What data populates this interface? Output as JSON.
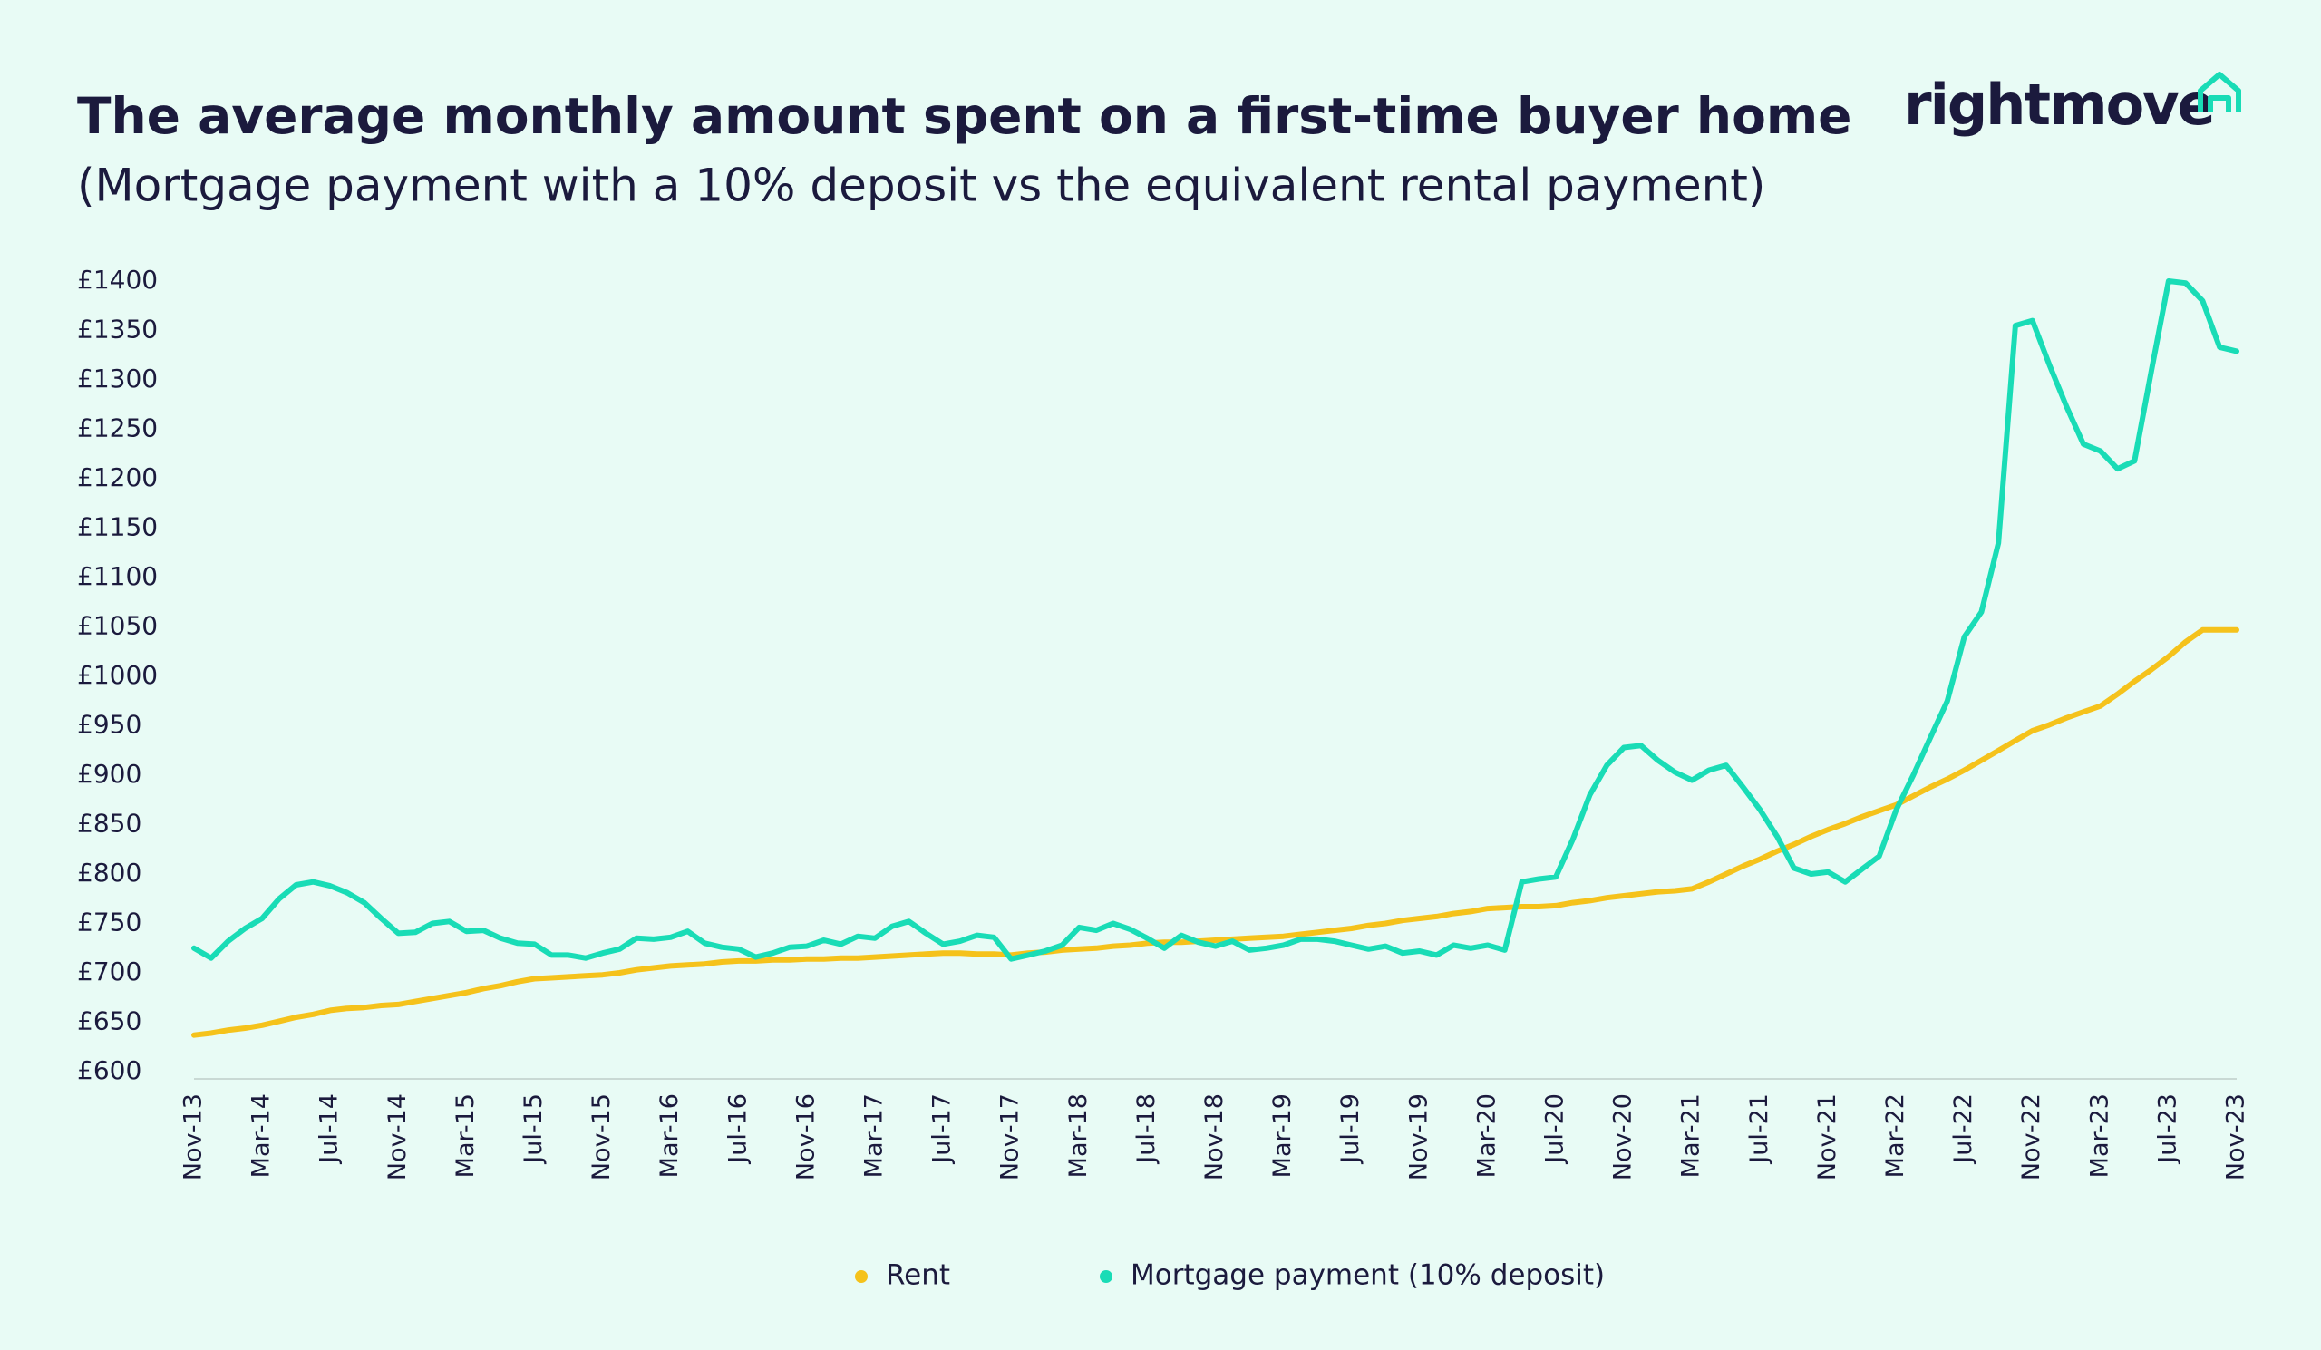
{
  "logo": "rightmove",
  "chart_data": {
    "type": "line",
    "title": "The average monthly amount spent on a first-time buyer home",
    "subtitle": "(Mortgage payment with a 10% deposit vs the equivalent rental payment)",
    "categories": [
      "Nov-13",
      null,
      null,
      null,
      "Mar-14",
      null,
      null,
      null,
      "Jul-14",
      null,
      null,
      null,
      "Nov-14",
      null,
      null,
      null,
      "Mar-15",
      null,
      null,
      null,
      "Jul-15",
      null,
      null,
      null,
      "Nov-15",
      null,
      null,
      null,
      "Mar-16",
      null,
      null,
      null,
      "Jul-16",
      null,
      null,
      null,
      "Nov-16",
      null,
      null,
      null,
      "Mar-17",
      null,
      null,
      null,
      "Jul-17",
      null,
      null,
      null,
      "Nov-17",
      null,
      null,
      null,
      "Mar-18",
      null,
      null,
      null,
      "Jul-18",
      null,
      null,
      null,
      "Nov-18",
      null,
      null,
      null,
      "Mar-19",
      null,
      null,
      null,
      "Jul-19",
      null,
      null,
      null,
      "Nov-19",
      null,
      null,
      null,
      "Mar-20",
      null,
      null,
      null,
      "Jul-20",
      null,
      null,
      null,
      "Nov-20",
      null,
      null,
      null,
      "Mar-21",
      null,
      null,
      null,
      "Jul-21",
      null,
      null,
      null,
      "Nov-21",
      null,
      null,
      null,
      "Mar-22",
      null,
      null,
      null,
      "Jul-22",
      null,
      null,
      null,
      "Nov-22",
      null,
      null,
      null,
      "Mar-23",
      null,
      null,
      null,
      "Jul-23",
      null,
      null,
      null,
      "Nov-23"
    ],
    "series": [
      {
        "name": "Rent",
        "color": "#f5c21b",
        "values": [
          637,
          639,
          642,
          644,
          647,
          651,
          655,
          658,
          662,
          664,
          665,
          667,
          668,
          671,
          674,
          677,
          680,
          684,
          687,
          691,
          694,
          695,
          696,
          697,
          698,
          700,
          703,
          705,
          707,
          708,
          709,
          711,
          712,
          712,
          713,
          713,
          714,
          714,
          715,
          715,
          716,
          717,
          718,
          719,
          720,
          720,
          719,
          719,
          718,
          720,
          721,
          723,
          724,
          725,
          727,
          728,
          730,
          731,
          731,
          732,
          733,
          734,
          735,
          736,
          737,
          739,
          741,
          743,
          745,
          748,
          750,
          753,
          755,
          757,
          760,
          762,
          765,
          766,
          767,
          767,
          768,
          771,
          773,
          776,
          778,
          780,
          782,
          783,
          785,
          792,
          800,
          808,
          815,
          823,
          830,
          838,
          845,
          851,
          858,
          864,
          870,
          879,
          888,
          896,
          905,
          915,
          925,
          935,
          945,
          951,
          958,
          964,
          970,
          982,
          995,
          1007,
          1020,
          1035,
          1047,
          1047,
          1047
        ]
      },
      {
        "name": "Mortgage payment (10% deposit)",
        "color": "#19dcb6",
        "values": [
          725,
          715,
          732,
          745,
          755,
          775,
          789,
          792,
          788,
          781,
          771,
          755,
          740,
          741,
          750,
          752,
          742,
          743,
          735,
          730,
          729,
          718,
          718,
          715,
          720,
          724,
          735,
          734,
          736,
          742,
          730,
          726,
          724,
          716,
          720,
          726,
          727,
          733,
          729,
          737,
          735,
          747,
          752,
          740,
          729,
          732,
          738,
          736,
          714,
          718,
          722,
          728,
          746,
          743,
          750,
          744,
          735,
          725,
          738,
          731,
          727,
          732,
          723,
          725,
          728,
          734,
          734,
          732,
          728,
          724,
          727,
          720,
          722,
          718,
          728,
          725,
          728,
          723,
          792,
          795,
          797,
          835,
          880,
          910,
          928,
          930,
          915,
          903,
          895,
          905,
          910,
          888,
          865,
          838,
          806,
          800,
          802,
          792,
          805,
          818,
          865,
          900,
          938,
          975,
          1040,
          1065,
          1135,
          1355,
          1360,
          1315,
          1273,
          1235,
          1228,
          1210,
          1218,
          1310,
          1400,
          1398,
          1380,
          1333,
          1329
        ]
      }
    ],
    "ylim": [
      600,
      1400
    ],
    "yticks": [
      {
        "value": 600,
        "label": "£600"
      },
      {
        "value": 650,
        "label": "£650"
      },
      {
        "value": 700,
        "label": "£700"
      },
      {
        "value": 750,
        "label": "£750"
      },
      {
        "value": 800,
        "label": "£800"
      },
      {
        "value": 850,
        "label": "£850"
      },
      {
        "value": 900,
        "label": "£900"
      },
      {
        "value": 950,
        "label": "£950"
      },
      {
        "value": 1000,
        "label": "£1000"
      },
      {
        "value": 1050,
        "label": "£1050"
      },
      {
        "value": 1100,
        "label": "£1100"
      },
      {
        "value": 1150,
        "label": "£1150"
      },
      {
        "value": 1200,
        "label": "£1200"
      },
      {
        "value": 1250,
        "label": "£1250"
      },
      {
        "value": 1300,
        "label": "£1300"
      },
      {
        "value": 1350,
        "label": "£1350"
      },
      {
        "value": 1400,
        "label": "£1400"
      }
    ],
    "grid": false,
    "legend": "bottom"
  }
}
